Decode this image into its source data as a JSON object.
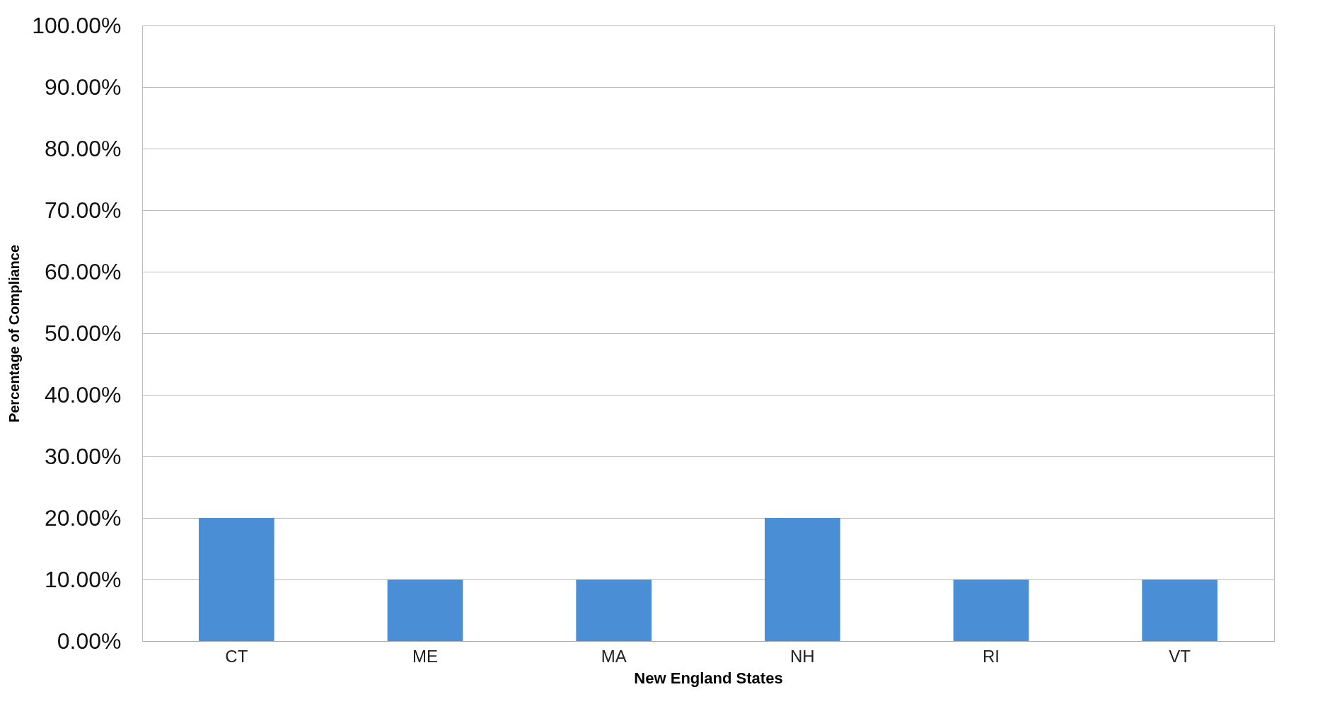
{
  "chart_data": {
    "type": "bar",
    "xlabel": "New England States",
    "ylabel": "Percentage of Compliance",
    "categories": [
      "CT",
      "ME",
      "MA",
      "NH",
      "RI",
      "VT"
    ],
    "values": [
      20,
      10,
      10,
      20,
      10,
      10
    ],
    "color": "#4a8fd6",
    "ylim": [
      0,
      100
    ],
    "yticks": [
      {
        "value": 0,
        "label": "0.00%"
      },
      {
        "value": 10,
        "label": "10.00%"
      },
      {
        "value": 20,
        "label": "20.00%"
      },
      {
        "value": 30,
        "label": "30.00%"
      },
      {
        "value": 40,
        "label": "40.00%"
      },
      {
        "value": 50,
        "label": "50.00%"
      },
      {
        "value": 60,
        "label": "60.00%"
      },
      {
        "value": 70,
        "label": "70.00%"
      },
      {
        "value": 80,
        "label": "80.00%"
      },
      {
        "value": 90,
        "label": "90.00%"
      },
      {
        "value": 100,
        "label": "100.00%"
      }
    ],
    "grid": "y"
  }
}
